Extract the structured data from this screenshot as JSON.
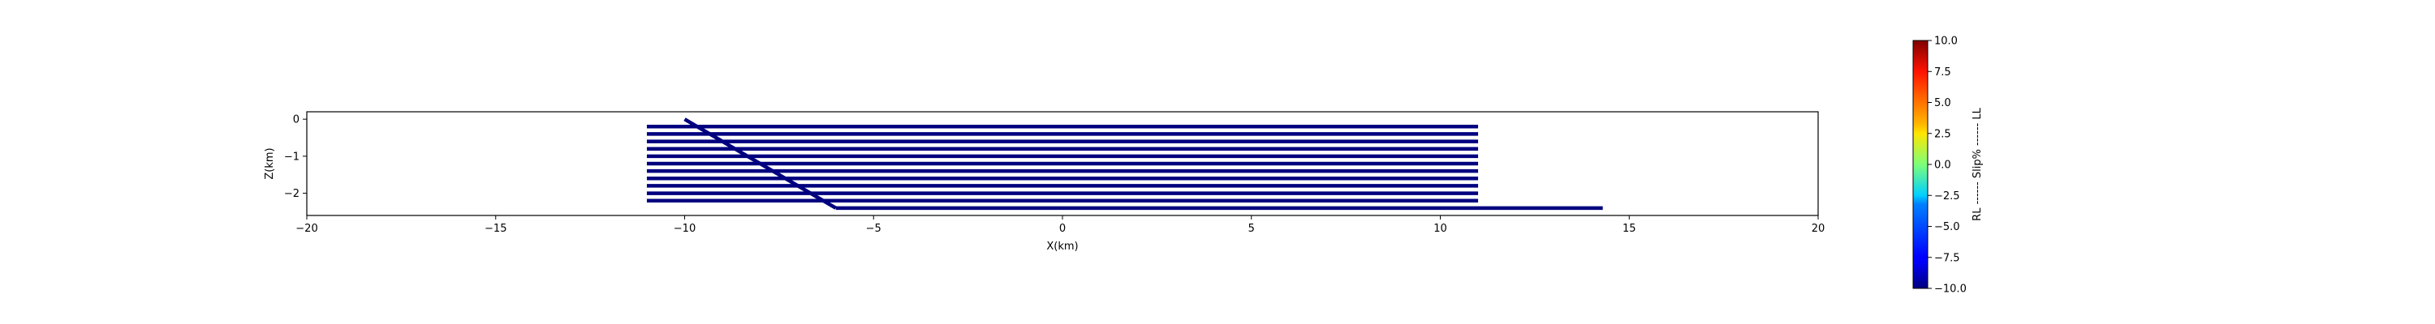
{
  "chart_data": {
    "type": "line",
    "xlabel": "X(km)",
    "ylabel": "Z(km)",
    "xlim": [
      -20,
      20
    ],
    "ylim": [
      -2.6,
      0.2
    ],
    "xticks": [
      -20,
      -15,
      -10,
      -5,
      0,
      5,
      10,
      15,
      20
    ],
    "yticks": [
      0,
      -1,
      -2
    ],
    "grid": false,
    "line_color": "#00007f",
    "series": [
      {
        "x": [
          -11,
          11
        ],
        "y": [
          -0.2,
          -0.2
        ]
      },
      {
        "x": [
          -11,
          11
        ],
        "y": [
          -0.4,
          -0.4
        ]
      },
      {
        "x": [
          -11,
          11
        ],
        "y": [
          -0.6,
          -0.6
        ]
      },
      {
        "x": [
          -11,
          11
        ],
        "y": [
          -0.8,
          -0.8
        ]
      },
      {
        "x": [
          -11,
          11
        ],
        "y": [
          -1.0,
          -1.0
        ]
      },
      {
        "x": [
          -11,
          11
        ],
        "y": [
          -1.2,
          -1.2
        ]
      },
      {
        "x": [
          -11,
          11
        ],
        "y": [
          -1.4,
          -1.4
        ]
      },
      {
        "x": [
          -11,
          11
        ],
        "y": [
          -1.6,
          -1.6
        ]
      },
      {
        "x": [
          -11,
          11
        ],
        "y": [
          -1.8,
          -1.8
        ]
      },
      {
        "x": [
          -11,
          11
        ],
        "y": [
          -2.0,
          -2.0
        ]
      },
      {
        "x": [
          -11,
          11
        ],
        "y": [
          -2.2,
          -2.2
        ]
      },
      {
        "x": [
          -6.0,
          14.3
        ],
        "y": [
          -2.4,
          -2.4
        ]
      },
      {
        "x": [
          -10,
          -6
        ],
        "y": [
          0,
          -2.4
        ]
      }
    ],
    "colorbar": {
      "label": "RL ------ Slip% ------ LL",
      "min": -10.0,
      "max": 10.0,
      "ticks": [
        "10.0",
        "7.5",
        "5.0",
        "2.5",
        "0.0",
        "-2.5",
        "-5.0",
        "-7.5",
        "-10.0"
      ],
      "colormap": "jet"
    }
  }
}
